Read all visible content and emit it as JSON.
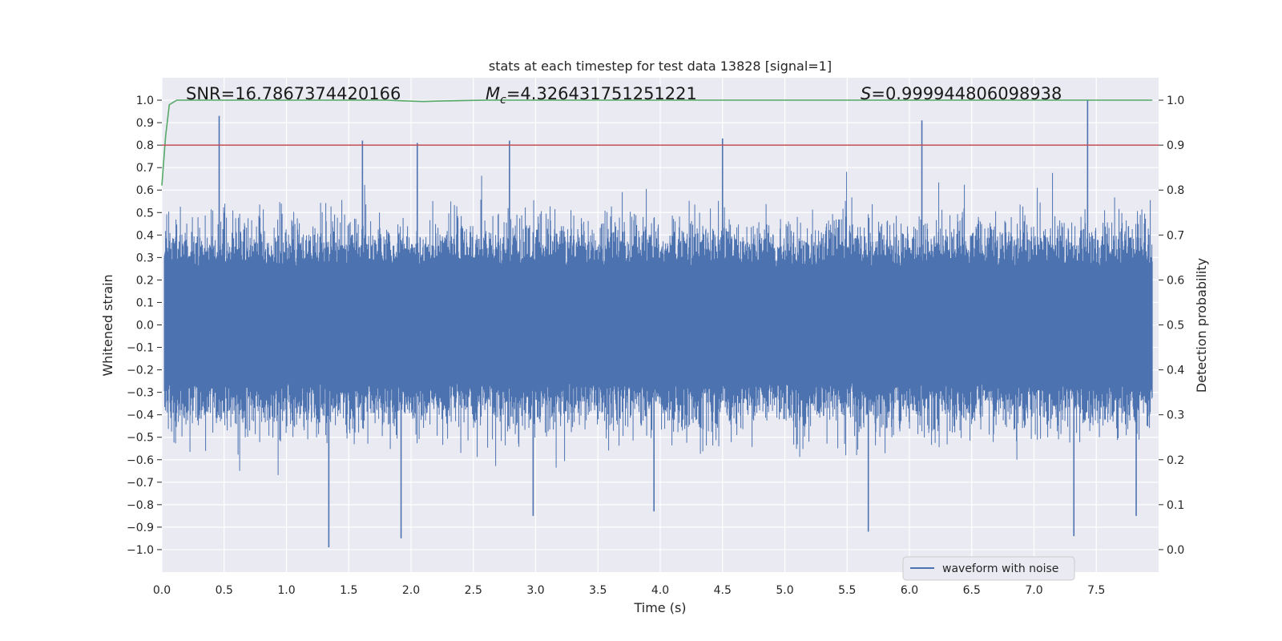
{
  "chart_data": {
    "type": "line",
    "title": "stats at each timestep for test data 13828 [signal=1]",
    "xlabel": "Time (s)",
    "ylabel": "Whitened strain",
    "ylabel_right": "Detection probability",
    "xlim": [
      0.0,
      8.0
    ],
    "ylim": [
      -1.1,
      1.1
    ],
    "ylim_right": [
      -0.05,
      1.05
    ],
    "x_ticks": [
      "0.0",
      "0.5",
      "1.0",
      "1.5",
      "2.0",
      "2.5",
      "3.0",
      "3.5",
      "4.0",
      "4.5",
      "5.0",
      "5.5",
      "6.0",
      "6.5",
      "7.0",
      "7.5"
    ],
    "y_ticks": [
      "1.0",
      "0.9",
      "0.8",
      "0.7",
      "0.6",
      "0.5",
      "0.4",
      "0.3",
      "0.2",
      "0.1",
      "0.0",
      "−0.1",
      "−0.2",
      "−0.3",
      "−0.4",
      "−0.5",
      "−0.6",
      "−0.7",
      "−0.8",
      "−0.9",
      "−1.0"
    ],
    "y_right_ticks": [
      "1.0",
      "0.9",
      "0.8",
      "0.7",
      "0.6",
      "0.5",
      "0.4",
      "0.3",
      "0.2",
      "0.1",
      "0.0"
    ],
    "annotations": {
      "snr": "SNR=16.7867374420166",
      "mc_symbol": "M",
      "mc_sub": "c",
      "mc_value": "=4.326431751251221",
      "s_symbol": "S",
      "s_value": "=0.999944806098938"
    },
    "grid": true,
    "legend": {
      "position": "bottom-right",
      "entry": "waveform with noise"
    },
    "series": [
      {
        "name": "waveform with noise",
        "axis": "left",
        "color": "#4c72b0",
        "envelope_core": 0.42,
        "sample_rate_hint": 2048,
        "notable_peaks": [
          {
            "x": 0.46,
            "y": 0.93
          },
          {
            "x": 1.61,
            "y": 0.82
          },
          {
            "x": 2.05,
            "y": 0.81
          },
          {
            "x": 2.79,
            "y": 0.82
          },
          {
            "x": 4.5,
            "y": 0.83
          },
          {
            "x": 6.1,
            "y": 0.91
          },
          {
            "x": 7.43,
            "y": 1.0
          },
          {
            "x": 1.34,
            "y": -0.99
          },
          {
            "x": 1.92,
            "y": -0.95
          },
          {
            "x": 2.98,
            "y": -0.85
          },
          {
            "x": 3.95,
            "y": -0.83
          },
          {
            "x": 5.67,
            "y": -0.92
          },
          {
            "x": 7.32,
            "y": -0.94
          },
          {
            "x": 7.82,
            "y": -0.85
          }
        ]
      },
      {
        "name": "",
        "axis": "right",
        "color": "#55a868",
        "x": [
          0.0,
          0.03,
          0.06,
          0.12,
          0.2,
          0.5,
          1.0,
          1.5,
          1.8,
          2.0,
          2.1,
          2.2,
          2.4,
          2.6,
          3.0,
          4.0,
          5.0,
          6.0,
          7.0,
          7.95
        ],
        "y": [
          0.81,
          0.92,
          0.99,
          1.0,
          1.0,
          1.0,
          1.0,
          1.0,
          1.0,
          0.998,
          0.997,
          0.998,
          0.999,
          1.0,
          1.0,
          1.0,
          1.0,
          1.0,
          1.0,
          1.0
        ]
      },
      {
        "name": "",
        "axis": "right",
        "color": "#c44e52",
        "x": [
          0.0,
          8.0
        ],
        "y": [
          0.9,
          0.9
        ]
      }
    ]
  }
}
